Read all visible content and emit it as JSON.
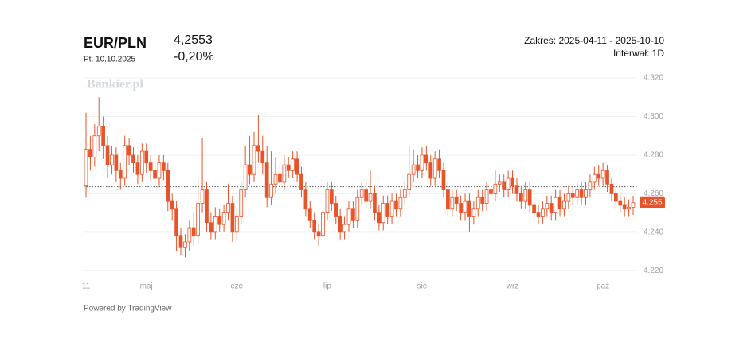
{
  "header": {
    "symbol": "EUR/PLN",
    "date": "Pt. 10.10.2025",
    "price": "4,2553",
    "change": "-0,20%",
    "range": "Zakres: 2025-04-11 - 2025-10-10",
    "interval": "Interwał: 1D",
    "watermark": "Bankier.pl",
    "footer": "Powered by TradingView"
  },
  "chart_data": {
    "type": "candlestick",
    "color": "#e8542a",
    "categories": [
      "11",
      null,
      null,
      null,
      null,
      null,
      null,
      null,
      null,
      null,
      null,
      null,
      null,
      null,
      "maj",
      null,
      null,
      null,
      null,
      null,
      null,
      null,
      null,
      null,
      null,
      null,
      null,
      null,
      null,
      null,
      null,
      null,
      null,
      null,
      null,
      "cze",
      null,
      null,
      null,
      null,
      null,
      null,
      null,
      null,
      null,
      null,
      null,
      null,
      null,
      null,
      null,
      null,
      null,
      null,
      null,
      null,
      "lip",
      null,
      null,
      null,
      null,
      null,
      null,
      null,
      null,
      null,
      null,
      null,
      null,
      null,
      null,
      null,
      null,
      null,
      null,
      null,
      null,
      null,
      "sie",
      null,
      null,
      null,
      null,
      null,
      null,
      null,
      null,
      null,
      null,
      null,
      null,
      null,
      null,
      null,
      null,
      null,
      null,
      null,
      null,
      "wrz",
      null,
      null,
      null,
      null,
      null,
      null,
      null,
      null,
      null,
      null,
      null,
      null,
      null,
      null,
      null,
      null,
      null,
      null,
      null,
      null,
      "paź",
      null,
      null,
      null,
      null,
      null,
      null,
      null
    ],
    "open": [
      4.264,
      4.283,
      4.279,
      4.29,
      4.295,
      4.285,
      4.275,
      4.28,
      4.272,
      4.268,
      4.285,
      4.28,
      4.276,
      4.27,
      4.282,
      4.276,
      4.272,
      4.268,
      4.276,
      4.272,
      4.256,
      4.252,
      4.238,
      4.232,
      4.235,
      4.242,
      4.238,
      4.255,
      4.262,
      4.245,
      4.24,
      4.248,
      4.244,
      4.25,
      4.255,
      4.24,
      4.248,
      4.262,
      4.275,
      4.27,
      4.285,
      4.282,
      4.276,
      4.258,
      4.265,
      4.27,
      4.266,
      4.275,
      4.272,
      4.278,
      4.27,
      4.262,
      4.252,
      4.246,
      4.24,
      4.238,
      4.25,
      4.262,
      4.255,
      4.248,
      4.24,
      4.244,
      4.252,
      4.246,
      4.258,
      4.262,
      4.256,
      4.26,
      4.25,
      4.245,
      4.255,
      4.248,
      4.256,
      4.252,
      4.258,
      4.262,
      4.27,
      4.275,
      4.272,
      4.28,
      4.276,
      4.268,
      4.278,
      4.272,
      4.262,
      4.252,
      4.258,
      4.255,
      4.25,
      4.256,
      4.248,
      4.252,
      4.258,
      4.255,
      4.262,
      4.26,
      4.265,
      4.266,
      4.262,
      4.268,
      4.264,
      4.26,
      4.256,
      4.262,
      4.254,
      4.25,
      4.248,
      4.252,
      4.255,
      4.25,
      4.258,
      4.252,
      4.256,
      4.26,
      4.258,
      4.262,
      4.258,
      4.262,
      4.266,
      4.27,
      4.268,
      4.272,
      4.265,
      4.26,
      4.256,
      4.254,
      4.252,
      4.253
    ],
    "high": [
      4.302,
      4.29,
      4.296,
      4.31,
      4.3,
      4.29,
      4.285,
      4.284,
      4.276,
      4.29,
      4.289,
      4.284,
      4.28,
      4.286,
      4.286,
      4.28,
      4.276,
      4.28,
      4.28,
      4.276,
      4.26,
      4.256,
      4.242,
      4.239,
      4.246,
      4.25,
      4.268,
      4.289,
      4.266,
      4.25,
      4.253,
      4.252,
      4.254,
      4.265,
      4.259,
      4.252,
      4.266,
      4.285,
      4.29,
      4.292,
      4.301,
      4.29,
      4.285,
      4.282,
      4.279,
      4.275,
      4.28,
      4.279,
      4.282,
      4.282,
      4.274,
      4.266,
      4.256,
      4.25,
      4.244,
      4.254,
      4.266,
      4.266,
      4.259,
      4.252,
      4.248,
      4.256,
      4.256,
      4.262,
      4.266,
      4.266,
      4.272,
      4.264,
      4.254,
      4.259,
      4.259,
      4.26,
      4.26,
      4.262,
      4.266,
      4.285,
      4.283,
      4.28,
      4.284,
      4.285,
      4.28,
      4.282,
      4.283,
      4.276,
      4.266,
      4.262,
      4.262,
      4.259,
      4.26,
      4.26,
      4.256,
      4.262,
      4.262,
      4.266,
      4.266,
      4.272,
      4.27,
      4.27,
      4.272,
      4.272,
      4.268,
      4.264,
      4.266,
      4.266,
      4.258,
      4.254,
      4.256,
      4.259,
      4.259,
      4.262,
      4.262,
      4.26,
      4.264,
      4.264,
      4.266,
      4.266,
      4.266,
      4.27,
      4.274,
      4.275,
      4.276,
      4.275,
      4.268,
      4.264,
      4.26,
      4.258,
      4.257,
      4.259
    ],
    "low": [
      4.258,
      4.272,
      4.274,
      4.282,
      4.278,
      4.268,
      4.27,
      4.266,
      4.262,
      4.264,
      4.275,
      4.271,
      4.265,
      4.266,
      4.271,
      4.267,
      4.263,
      4.264,
      4.267,
      4.251,
      4.246,
      4.23,
      4.228,
      4.227,
      4.23,
      4.233,
      4.234,
      4.25,
      4.24,
      4.236,
      4.236,
      4.24,
      4.24,
      4.246,
      4.235,
      4.236,
      4.244,
      4.258,
      4.265,
      4.266,
      4.276,
      4.27,
      4.253,
      4.254,
      4.26,
      4.262,
      4.262,
      4.268,
      4.268,
      4.266,
      4.258,
      4.248,
      4.242,
      4.236,
      4.233,
      4.234,
      4.246,
      4.251,
      4.244,
      4.236,
      4.236,
      4.24,
      4.242,
      4.242,
      4.254,
      4.252,
      4.252,
      4.246,
      4.241,
      4.241,
      4.244,
      4.244,
      4.248,
      4.248,
      4.254,
      4.258,
      4.266,
      4.268,
      4.268,
      4.272,
      4.264,
      4.264,
      4.268,
      4.258,
      4.248,
      4.248,
      4.251,
      4.246,
      4.246,
      4.24,
      4.244,
      4.248,
      4.251,
      4.251,
      4.256,
      4.256,
      4.261,
      4.258,
      4.258,
      4.26,
      4.256,
      4.252,
      4.252,
      4.25,
      4.246,
      4.244,
      4.244,
      4.248,
      4.246,
      4.246,
      4.248,
      4.248,
      4.252,
      4.254,
      4.254,
      4.254,
      4.254,
      4.258,
      4.262,
      4.264,
      4.264,
      4.261,
      4.256,
      4.252,
      4.25,
      4.248,
      4.248,
      4.249
    ],
    "close": [
      4.283,
      4.279,
      4.29,
      4.295,
      4.285,
      4.275,
      4.28,
      4.272,
      4.268,
      4.285,
      4.28,
      4.276,
      4.27,
      4.282,
      4.276,
      4.272,
      4.268,
      4.276,
      4.272,
      4.256,
      4.252,
      4.238,
      4.232,
      4.235,
      4.242,
      4.238,
      4.255,
      4.262,
      4.245,
      4.24,
      4.248,
      4.244,
      4.25,
      4.255,
      4.24,
      4.248,
      4.262,
      4.275,
      4.27,
      4.285,
      4.282,
      4.276,
      4.258,
      4.265,
      4.27,
      4.266,
      4.275,
      4.272,
      4.278,
      4.27,
      4.262,
      4.252,
      4.246,
      4.24,
      4.238,
      4.25,
      4.262,
      4.255,
      4.248,
      4.24,
      4.244,
      4.252,
      4.246,
      4.258,
      4.262,
      4.256,
      4.26,
      4.25,
      4.245,
      4.255,
      4.248,
      4.256,
      4.252,
      4.258,
      4.262,
      4.27,
      4.275,
      4.272,
      4.28,
      4.276,
      4.268,
      4.278,
      4.272,
      4.262,
      4.252,
      4.258,
      4.255,
      4.25,
      4.256,
      4.248,
      4.252,
      4.258,
      4.255,
      4.262,
      4.26,
      4.265,
      4.266,
      4.262,
      4.268,
      4.264,
      4.26,
      4.256,
      4.262,
      4.254,
      4.25,
      4.248,
      4.252,
      4.255,
      4.25,
      4.258,
      4.252,
      4.256,
      4.26,
      4.258,
      4.262,
      4.258,
      4.262,
      4.266,
      4.27,
      4.268,
      4.272,
      4.265,
      4.26,
      4.256,
      4.254,
      4.252,
      4.253,
      4.2553
    ],
    "last_price": {
      "value": 4.2553,
      "label": "4.255"
    },
    "reference_line": 4.2636,
    "ylim": [
      4.216,
      4.3225
    ],
    "yticks": [
      {
        "value": 4.22,
        "label": "4.220"
      },
      {
        "value": 4.24,
        "label": "4.240"
      },
      {
        "value": 4.26,
        "label": "4.260"
      },
      {
        "value": 4.28,
        "label": "4.280"
      },
      {
        "value": 4.3,
        "label": "4.300"
      },
      {
        "value": 4.32,
        "label": "4.320"
      }
    ],
    "grid": true
  }
}
